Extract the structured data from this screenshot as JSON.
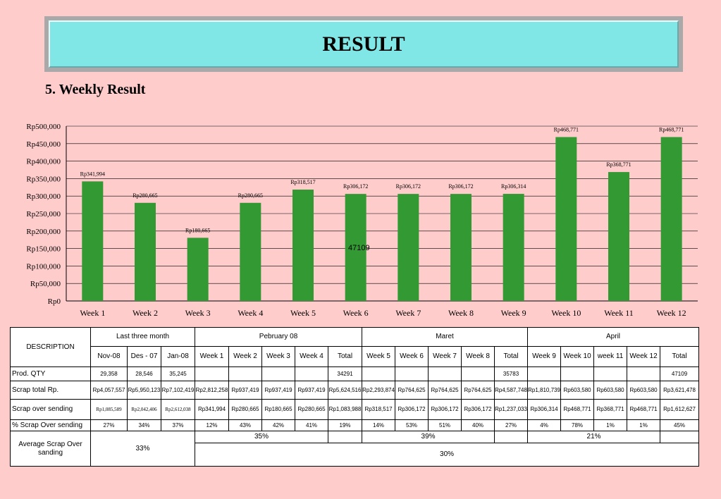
{
  "header": {
    "title": "RESULT"
  },
  "section": {
    "subtitle": "5. Weekly Result"
  },
  "chart_data": {
    "type": "bar",
    "categories": [
      "Week 1",
      "Week 2",
      "Week 3",
      "Week 4",
      "Week 5",
      "Week 6",
      "Week 7",
      "Week 8",
      "Week 9",
      "Week 10",
      "Week 11",
      "Week 12"
    ],
    "values": [
      341994,
      280665,
      180665,
      280665,
      318517,
      306172,
      306172,
      306172,
      306314,
      468771,
      368771,
      468771
    ],
    "data_labels": [
      "Rp341,994",
      "Rp280,665",
      "Rp180,665",
      "Rp280,665",
      "Rp318,517",
      "Rp306,172",
      "Rp306,172",
      "Rp306,172",
      "Rp306,314",
      "Rp468,771",
      "Rp368,771",
      "Rp468,771"
    ],
    "ylim": [
      0,
      500000
    ],
    "yticks": [
      0,
      50000,
      100000,
      150000,
      200000,
      250000,
      300000,
      350000,
      400000,
      450000,
      500000
    ],
    "ytick_labels": [
      "Rp0",
      "Rp50,000",
      "Rp100,000",
      "Rp150,000",
      "Rp200,000",
      "Rp250,000",
      "Rp300,000",
      "Rp350,000",
      "Rp400,000",
      "Rp450,000",
      "Rp500,000"
    ],
    "grid": true,
    "bar_color": "#339933",
    "annotation": "47109",
    "title": "",
    "xlabel": "",
    "ylabel": ""
  },
  "table": {
    "desc_header": "DESCRIPTION",
    "groups": {
      "last3": "Last three month",
      "feb": "Pebruary 08",
      "mar": "Maret",
      "apr": "April"
    },
    "subheaders": [
      "Nov-08",
      "Des - 07",
      "Jan-08",
      "Week 1",
      "Week 2",
      "Week 3",
      "Week 4",
      "Total",
      "Week 5",
      "Week 6",
      "Week 7",
      "Week 8",
      "Total",
      "Week 9",
      "Week 10",
      "week 11",
      "Week 12",
      "Total"
    ],
    "rows": [
      {
        "label": "Prod. QTY",
        "cells": [
          "29,358",
          "28,546",
          "35,245",
          "",
          "",
          "",
          "",
          "34291",
          "",
          "",
          "",
          "",
          "35783",
          "",
          "",
          "",
          "",
          "47109"
        ]
      },
      {
        "label": "Scrap total Rp.",
        "cells": [
          "Rp4,057,557",
          "Rp5,950,123",
          "Rp7,102,419",
          "Rp2,812,258",
          "Rp937,419",
          "Rp937,419",
          "Rp937,419",
          "Rp5,624,516",
          "Rp2,293,874",
          "Rp764,625",
          "Rp764,625",
          "Rp764,625",
          "Rp4,587,748",
          "Rp1,810,739",
          "Rp603,580",
          "Rp603,580",
          "Rp603,580",
          "Rp3,621,478"
        ]
      },
      {
        "label": "Scrap over sending",
        "cells": [
          "Rp1,085,589",
          "Rp2,042,406",
          "Rp2,612,038",
          "Rp341,994",
          "Rp280,665",
          "Rp180,665",
          "Rp280,665",
          "Rp1,083,988",
          "Rp318,517",
          "Rp306,172",
          "Rp306,172",
          "Rp306,172",
          "Rp1,237,033",
          "Rp306,314",
          "Rp468,771",
          "Rp368,771",
          "Rp468,771",
          "Rp1,612,627"
        ]
      },
      {
        "label": "% Scrap Over sending",
        "cells": [
          "27%",
          "34%",
          "37%",
          "12%",
          "43%",
          "42%",
          "41%",
          "19%",
          "14%",
          "53%",
          "51%",
          "40%",
          "27%",
          "4%",
          "78%",
          "1%",
          "1%",
          "45%"
        ]
      }
    ],
    "average": {
      "label": "Average Scrap Over sanding",
      "last3": "33%",
      "feb": "35%",
      "mar": "39%",
      "apr": "21%",
      "overall": "30%"
    }
  }
}
